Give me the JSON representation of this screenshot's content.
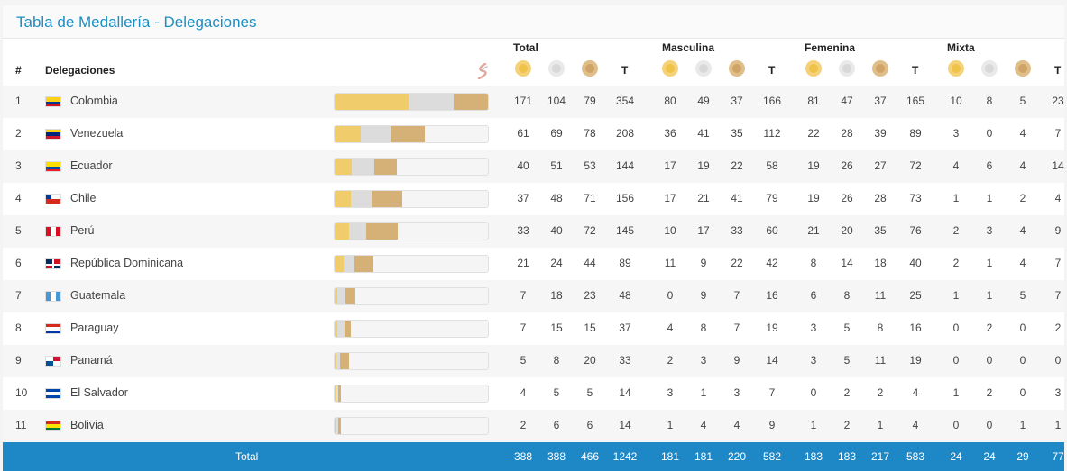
{
  "title": "Tabla de Medallería - Delegaciones",
  "header": {
    "rank": "#",
    "delegations": "Delegaciones",
    "groups": [
      "Total",
      "Masculina",
      "Femenina",
      "Mixta"
    ],
    "total_col": "T"
  },
  "icons": {
    "gold": "gold-medal-icon",
    "silver": "silver-medal-icon",
    "bronze": "bronze-medal-icon",
    "logo": "games-logo-icon"
  },
  "colors": {
    "title": "#1b8fc4",
    "gold": "#f0cc6a",
    "silver": "#dcdcdc",
    "bronze": "#d5b077",
    "total_bar": "#1e88c7"
  },
  "bar_max_total": 354,
  "rows": [
    {
      "rank": "1",
      "name": "Colombia",
      "flag": "colombia",
      "total": [
        "171",
        "104",
        "79",
        "354"
      ],
      "masc": [
        "80",
        "49",
        "37",
        "166"
      ],
      "fem": [
        "81",
        "47",
        "37",
        "165"
      ],
      "mix": [
        "10",
        "8",
        "5",
        "23"
      ]
    },
    {
      "rank": "2",
      "name": "Venezuela",
      "flag": "venezuela",
      "total": [
        "61",
        "69",
        "78",
        "208"
      ],
      "masc": [
        "36",
        "41",
        "35",
        "112"
      ],
      "fem": [
        "22",
        "28",
        "39",
        "89"
      ],
      "mix": [
        "3",
        "0",
        "4",
        "7"
      ]
    },
    {
      "rank": "3",
      "name": "Ecuador",
      "flag": "ecuador",
      "total": [
        "40",
        "51",
        "53",
        "144"
      ],
      "masc": [
        "17",
        "19",
        "22",
        "58"
      ],
      "fem": [
        "19",
        "26",
        "27",
        "72"
      ],
      "mix": [
        "4",
        "6",
        "4",
        "14"
      ]
    },
    {
      "rank": "4",
      "name": "Chile",
      "flag": "chile",
      "total": [
        "37",
        "48",
        "71",
        "156"
      ],
      "masc": [
        "17",
        "21",
        "41",
        "79"
      ],
      "fem": [
        "19",
        "26",
        "28",
        "73"
      ],
      "mix": [
        "1",
        "1",
        "2",
        "4"
      ]
    },
    {
      "rank": "5",
      "name": "Perú",
      "flag": "peru",
      "total": [
        "33",
        "40",
        "72",
        "145"
      ],
      "masc": [
        "10",
        "17",
        "33",
        "60"
      ],
      "fem": [
        "21",
        "20",
        "35",
        "76"
      ],
      "mix": [
        "2",
        "3",
        "4",
        "9"
      ]
    },
    {
      "rank": "6",
      "name": "República Dominicana",
      "flag": "dominicana",
      "total": [
        "21",
        "24",
        "44",
        "89"
      ],
      "masc": [
        "11",
        "9",
        "22",
        "42"
      ],
      "fem": [
        "8",
        "14",
        "18",
        "40"
      ],
      "mix": [
        "2",
        "1",
        "4",
        "7"
      ]
    },
    {
      "rank": "7",
      "name": "Guatemala",
      "flag": "guatemala",
      "total": [
        "7",
        "18",
        "23",
        "48"
      ],
      "masc": [
        "0",
        "9",
        "7",
        "16"
      ],
      "fem": [
        "6",
        "8",
        "11",
        "25"
      ],
      "mix": [
        "1",
        "1",
        "5",
        "7"
      ]
    },
    {
      "rank": "8",
      "name": "Paraguay",
      "flag": "paraguay",
      "total": [
        "7",
        "15",
        "15",
        "37"
      ],
      "masc": [
        "4",
        "8",
        "7",
        "19"
      ],
      "fem": [
        "3",
        "5",
        "8",
        "16"
      ],
      "mix": [
        "0",
        "2",
        "0",
        "2"
      ]
    },
    {
      "rank": "9",
      "name": "Panamá",
      "flag": "panama",
      "total": [
        "5",
        "8",
        "20",
        "33"
      ],
      "masc": [
        "2",
        "3",
        "9",
        "14"
      ],
      "fem": [
        "3",
        "5",
        "11",
        "19"
      ],
      "mix": [
        "0",
        "0",
        "0",
        "0"
      ]
    },
    {
      "rank": "10",
      "name": "El Salvador",
      "flag": "elsalvador",
      "total": [
        "4",
        "5",
        "5",
        "14"
      ],
      "masc": [
        "3",
        "1",
        "3",
        "7"
      ],
      "fem": [
        "0",
        "2",
        "2",
        "4"
      ],
      "mix": [
        "1",
        "2",
        "0",
        "3"
      ]
    },
    {
      "rank": "11",
      "name": "Bolivia",
      "flag": "bolivia",
      "total": [
        "2",
        "6",
        "6",
        "14"
      ],
      "masc": [
        "1",
        "4",
        "4",
        "9"
      ],
      "fem": [
        "1",
        "2",
        "1",
        "4"
      ],
      "mix": [
        "0",
        "0",
        "1",
        "1"
      ]
    }
  ],
  "totals": {
    "label": "Total",
    "total": [
      "388",
      "388",
      "466",
      "1242"
    ],
    "masc": [
      "181",
      "181",
      "220",
      "582"
    ],
    "fem": [
      "183",
      "183",
      "217",
      "583"
    ],
    "mix": [
      "24",
      "24",
      "29",
      "77"
    ]
  }
}
